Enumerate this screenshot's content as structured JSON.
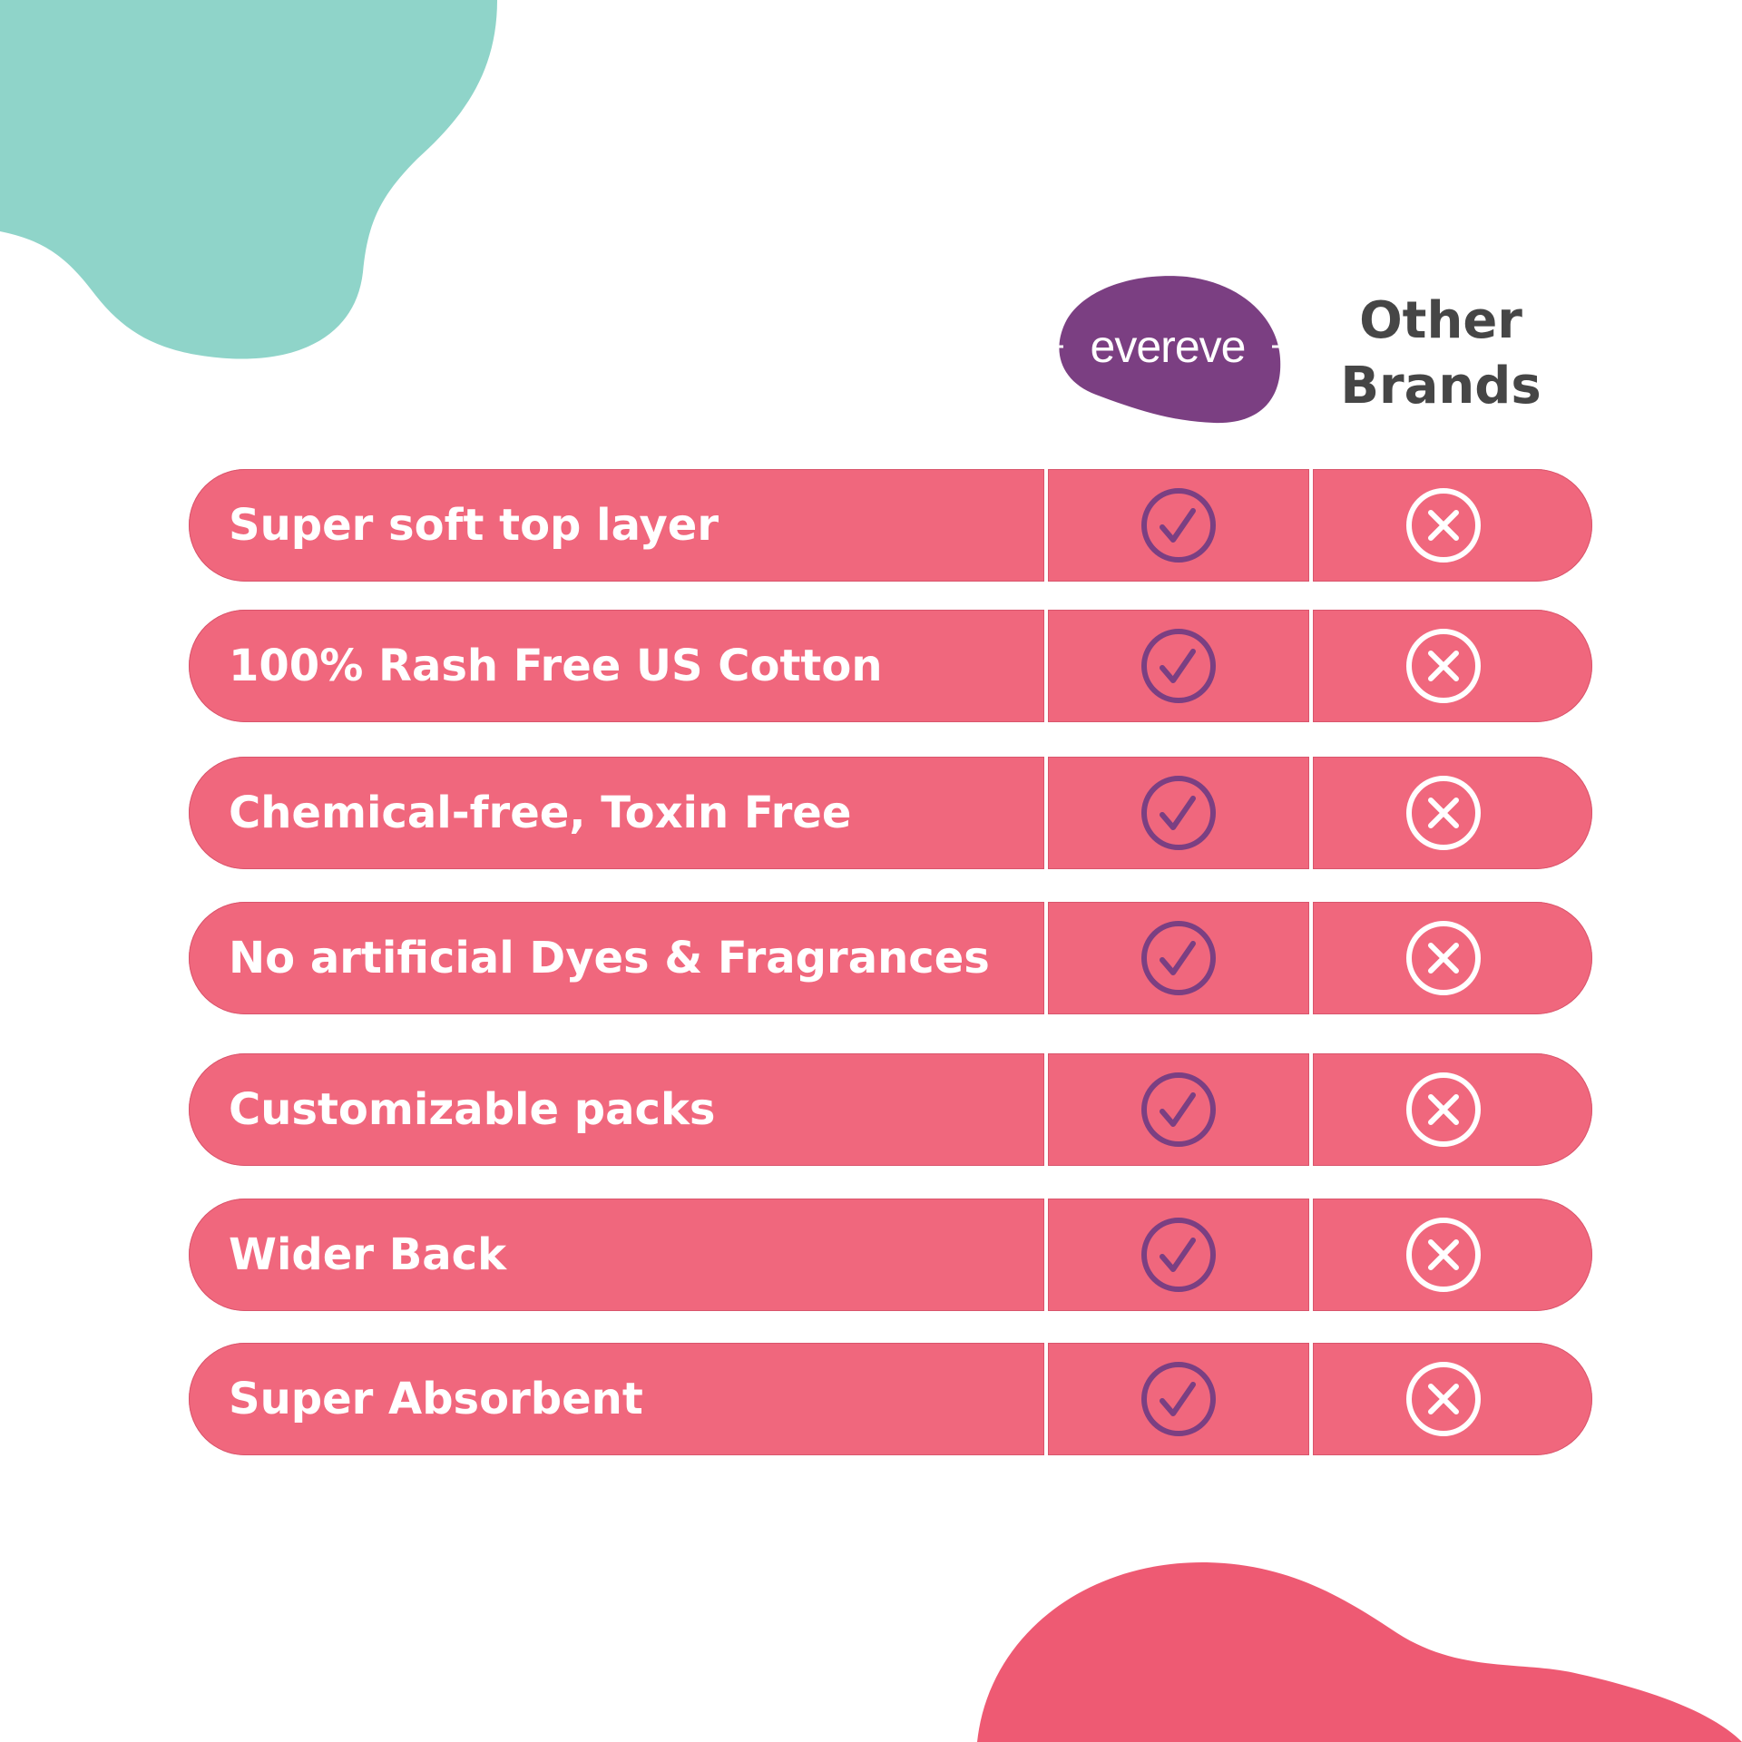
{
  "header": {
    "brand_logo_text": "evereve",
    "other_label_line1": "Other",
    "other_label_line2": "Brands"
  },
  "colors": {
    "row": "#F0677D",
    "brand_purple": "#7B3F82",
    "teal_blob": "#8FD4C9",
    "pink_blob": "#EE5A73",
    "heading_text": "#464646"
  },
  "rows": [
    {
      "feature": "Super soft top layer",
      "evereve": "check-icon",
      "other": "cross-icon"
    },
    {
      "feature": "100% Rash Free US Cotton",
      "evereve": "check-icon",
      "other": "cross-icon"
    },
    {
      "feature": "Chemical-free, Toxin Free",
      "evereve": "check-icon",
      "other": "cross-icon"
    },
    {
      "feature": "No artificial Dyes & Fragrances",
      "evereve": "check-icon",
      "other": "cross-icon"
    },
    {
      "feature": "Customizable packs",
      "evereve": "check-icon",
      "other": "cross-icon"
    },
    {
      "feature": "Wider Back",
      "evereve": "check-icon",
      "other": "cross-icon"
    },
    {
      "feature": "Super Absorbent",
      "evereve": "check-icon",
      "other": "cross-icon"
    }
  ]
}
